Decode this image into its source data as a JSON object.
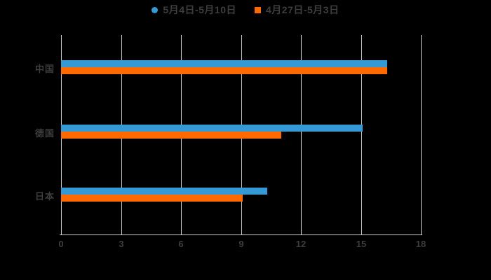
{
  "background": "#000000",
  "legend": {
    "items": [
      {
        "label": "5月4日-5月10日",
        "color": "#3499d5",
        "marker": "circle"
      },
      {
        "label": "4月27日-5月3日",
        "color": "#ff6a00",
        "marker": "square"
      }
    ]
  },
  "chart_data": {
    "type": "bar",
    "orientation": "horizontal",
    "title": "",
    "xlabel": "",
    "ylabel": "",
    "categories": [
      "中国",
      "德国",
      "日本"
    ],
    "series": [
      {
        "name": "5月4日-5月10日",
        "color": "#3499d5",
        "values": [
          16.3,
          15.1,
          10.3
        ]
      },
      {
        "name": "4月27日-5月3日",
        "color": "#ff6a00",
        "values": [
          16.3,
          11.0,
          9.1
        ]
      }
    ],
    "xlim": [
      0,
      18
    ],
    "xticks": [
      "0",
      "3",
      "6",
      "9",
      "12",
      "15",
      "18"
    ],
    "grid": true,
    "legend_position": "top",
    "colors": {
      "grid": "#cdcdcd",
      "axis": "#cdcdcd",
      "text": "#3d3d3d",
      "background": "#000000"
    }
  }
}
